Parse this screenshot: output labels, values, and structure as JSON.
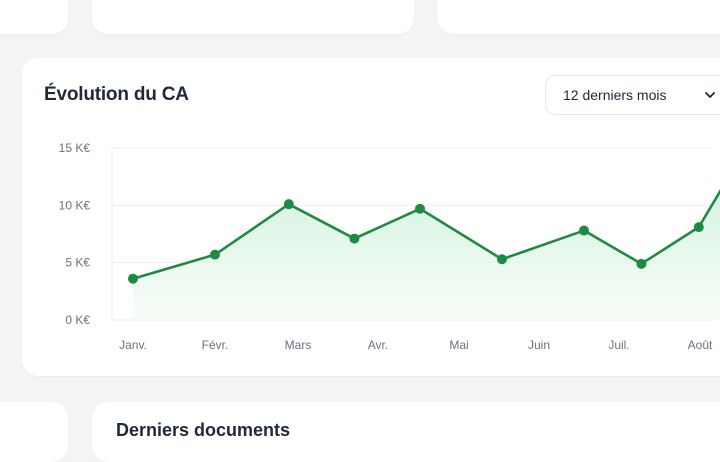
{
  "chart_card": {
    "title": "Évolution du CA",
    "period_select": {
      "value": "12 derniers mois"
    }
  },
  "recent_section": {
    "title": "Derniers documents"
  },
  "chart_data": {
    "type": "area",
    "title": "Évolution du CA",
    "categories": [
      "Janv.",
      "",
      "Févr.",
      "",
      "Mars",
      "",
      "Avr.",
      "",
      "Mai",
      "",
      "Juin",
      "",
      "Juil.",
      "",
      "Août"
    ],
    "x_tick_labels": [
      "Janv.",
      "Févr.",
      "Mars",
      "Avr.",
      "Mai",
      "Juin",
      "Juil.",
      "Août"
    ],
    "y_tick_labels": [
      "0 K€",
      "5 K€",
      "10 K€",
      "15 K€"
    ],
    "ylim": [
      0,
      15
    ],
    "unit": "K€",
    "points": [
      {
        "x": 0.0,
        "y": 3.6
      },
      {
        "x": 1.0,
        "y": 5.7
      },
      {
        "x": 1.9,
        "y": 10.1
      },
      {
        "x": 2.7,
        "y": 7.1
      },
      {
        "x": 3.5,
        "y": 9.7
      },
      {
        "x": 4.5,
        "y": 5.3
      },
      {
        "x": 5.5,
        "y": 7.8
      },
      {
        "x": 6.2,
        "y": 4.9
      },
      {
        "x": 6.9,
        "y": 8.1
      },
      {
        "x": 7.3,
        "y": 12.9
      }
    ],
    "grid": true,
    "colors": {
      "line": "#1f8a43",
      "fill": "#d9f5e1"
    }
  }
}
